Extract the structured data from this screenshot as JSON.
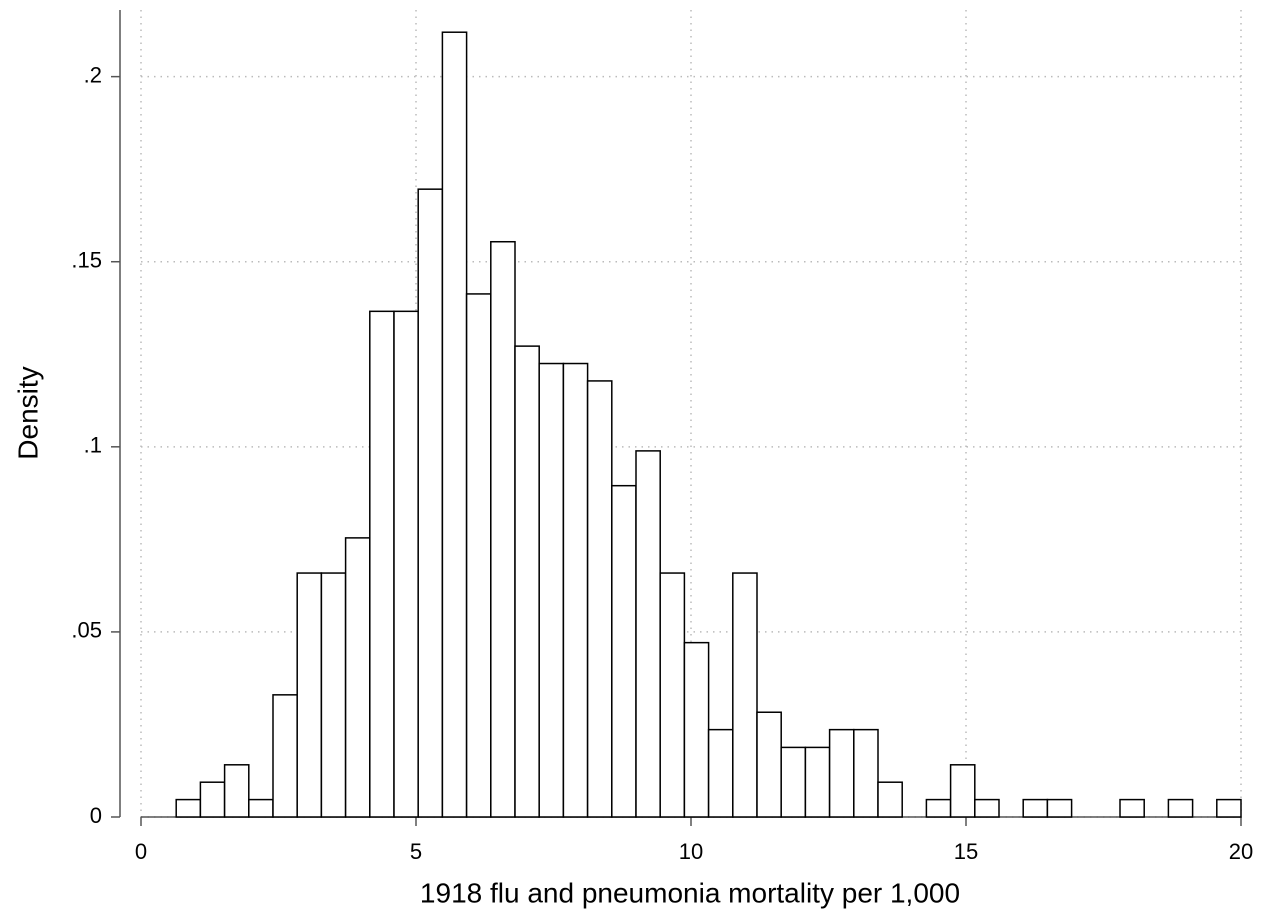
{
  "chart_data": {
    "type": "histogram",
    "x_label": "1918 flu and pneumonia mortality per 1,000",
    "y_label": "Density",
    "bins": [
      0.64,
      1.08,
      1.52,
      1.96,
      2.4,
      2.84,
      3.28,
      3.72,
      4.16,
      4.6,
      5.04,
      5.48,
      5.92,
      6.36,
      6.8,
      7.24,
      7.68,
      8.12,
      8.56,
      9.0,
      9.44,
      9.88,
      10.32,
      10.76,
      11.2,
      11.64,
      12.08,
      12.52,
      12.96,
      13.4,
      13.84,
      14.28,
      14.72,
      15.16,
      15.6,
      16.04,
      16.48,
      16.92,
      17.36,
      17.8,
      18.24,
      18.68,
      19.12,
      19.56,
      20.0
    ],
    "values": [
      0.0047,
      0.0094,
      0.0141,
      0.0047,
      0.033,
      0.0659,
      0.0659,
      0.0754,
      0.1366,
      0.1366,
      0.1696,
      0.212,
      0.1413,
      0.1554,
      0.1272,
      0.1225,
      0.1225,
      0.1178,
      0.0895,
      0.0989,
      0.0659,
      0.0471,
      0.0236,
      0.0659,
      0.0283,
      0.0188,
      0.0188,
      0.0236,
      0.0236,
      0.0094,
      0,
      0.0047,
      0.0141,
      0.0047,
      0,
      0.0047,
      0.0047,
      0,
      0,
      0.0047,
      0,
      0.0047,
      0,
      0.0047
    ],
    "color": "#ffffff",
    "edge_color": "#000000",
    "xlim": [
      0,
      20
    ],
    "xticks": [
      0,
      5,
      10,
      15,
      20
    ],
    "ylim": [
      0,
      0.218
    ],
    "yticks": [
      0,
      {
        "value": 0.05,
        "label": ".05"
      },
      {
        "value": 0.1,
        "label": ".1"
      },
      {
        "value": 0.15,
        "label": ".15"
      },
      {
        "value": 0.2,
        "label": ".2"
      }
    ],
    "grid": true
  }
}
